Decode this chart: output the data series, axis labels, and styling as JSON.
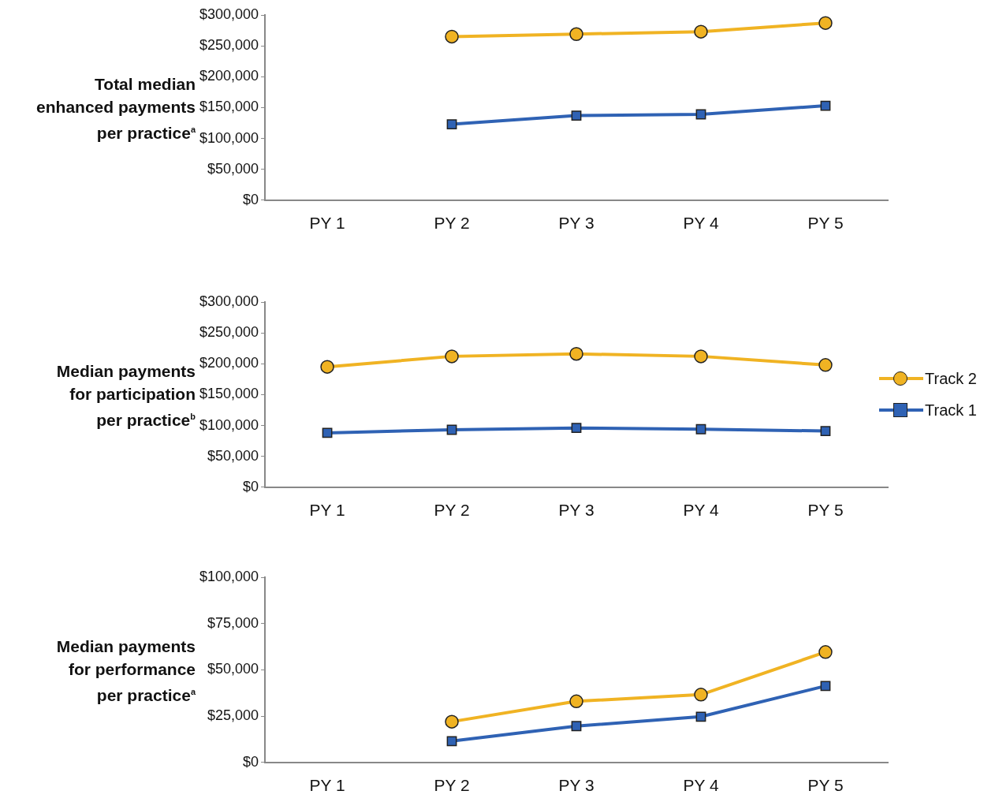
{
  "chart_data": [
    {
      "type": "line",
      "ylabel": "Total median\nenhanced  payments\nper practice$^{a}$",
      "categories": [
        "PY 1",
        "PY 2",
        "PY 3",
        "PY 4",
        "PY 5"
      ],
      "series": [
        {
          "color": "#f0b323",
          "marker": "circle",
          "values": [
            null,
            265000,
            269000,
            273000,
            287000
          ]
        },
        {
          "color": "#2f62b4",
          "marker": "square",
          "values": [
            null,
            123000,
            137000,
            139000,
            153000
          ]
        }
      ],
      "ylim": [
        0,
        300000
      ],
      "yticks": [
        {
          "value": 0,
          "label": "$0"
        },
        {
          "value": 50000,
          "label": "$50,000"
        },
        {
          "value": 100000,
          "label": "$100,000"
        },
        {
          "value": 150000,
          "label": "$150,000"
        },
        {
          "value": 200000,
          "label": "$200,000"
        },
        {
          "value": 250000,
          "label": "$250,000"
        },
        {
          "value": 300000,
          "label": "$300,000"
        }
      ],
      "grid": false
    },
    {
      "type": "line",
      "ylabel": "Median payments\nfor participation\nper practice$^{b}$",
      "categories": [
        "PY 1",
        "PY 2",
        "PY 3",
        "PY 4",
        "PY 5"
      ],
      "series": [
        {
          "name": "Track 2",
          "color": "#f0b323",
          "marker": "circle",
          "values": [
            195000,
            212000,
            216000,
            212000,
            198000
          ]
        },
        {
          "name": "Track 1",
          "color": "#2f62b4",
          "marker": "square",
          "values": [
            88000,
            93000,
            96000,
            94000,
            91000
          ]
        }
      ],
      "ylim": [
        0,
        300000
      ],
      "yticks": [
        {
          "value": 0,
          "label": "$0"
        },
        {
          "value": 50000,
          "label": "$50,000"
        },
        {
          "value": 100000,
          "label": "$100,000"
        },
        {
          "value": 150000,
          "label": "$150,000"
        },
        {
          "value": 200000,
          "label": "$200,000"
        },
        {
          "value": 250000,
          "label": "$250,000"
        },
        {
          "value": 300000,
          "label": "$300,000"
        }
      ],
      "grid": false,
      "legend": "right"
    },
    {
      "type": "line",
      "ylabel": "Median payments\nfor performance\nper practice$^{a}$",
      "categories": [
        "PY 1",
        "PY 2",
        "PY 3",
        "PY 4",
        "PY 5"
      ],
      "series": [
        {
          "color": "#f0b323",
          "marker": "circle",
          "values": [
            null,
            22000,
            33000,
            36600,
            59600
          ]
        },
        {
          "color": "#2f62b4",
          "marker": "square",
          "values": [
            null,
            11500,
            19600,
            24700,
            41300
          ]
        }
      ],
      "ylim": [
        0,
        100000
      ],
      "yticks": [
        {
          "value": 0,
          "label": "$0"
        },
        {
          "value": 25000,
          "label": "$25,000"
        },
        {
          "value": 50000,
          "label": "$50,000"
        },
        {
          "value": 75000,
          "label": "$75,000"
        },
        {
          "value": 100000,
          "label": "$100,000"
        }
      ],
      "grid": false
    }
  ]
}
